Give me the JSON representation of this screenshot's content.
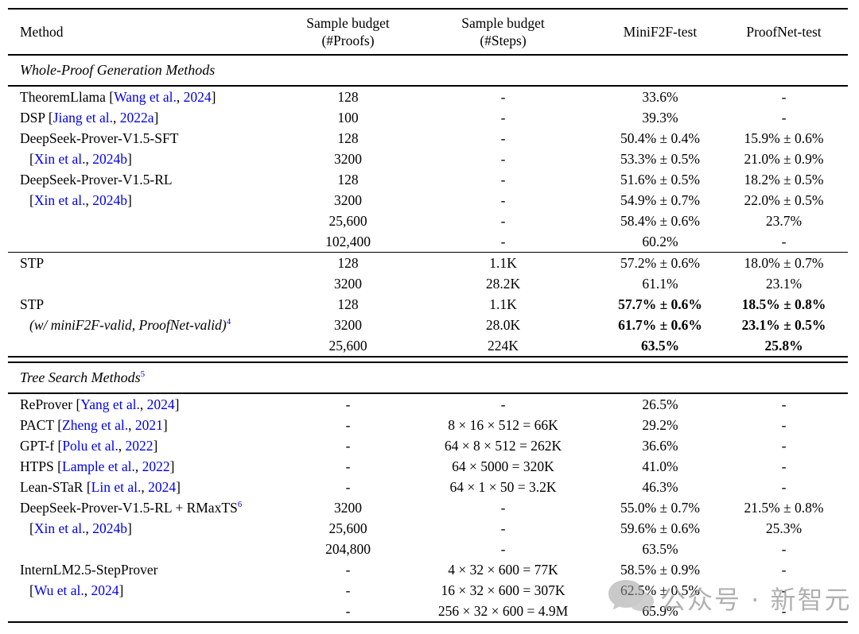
{
  "table": {
    "columns": [
      {
        "label": "Method",
        "sublabel": ""
      },
      {
        "label": "Sample budget",
        "sublabel": "(#Proofs)"
      },
      {
        "label": "Sample budget",
        "sublabel": "(#Steps)"
      },
      {
        "label": "MiniF2F-test",
        "sublabel": ""
      },
      {
        "label": "ProofNet-test",
        "sublabel": ""
      }
    ],
    "sections": [
      {
        "title": "Whole-Proof Generation Methods",
        "sup": "",
        "groups": [
          [
            {
              "method": "TheoremLlama",
              "cite_authors": "Wang et al.",
              "cite_year": "2024",
              "proofs": "128",
              "steps": "-",
              "minif2f": "33.6%",
              "proofnet": "-"
            },
            {
              "method": "DSP",
              "cite_authors": "Jiang et al.",
              "cite_year": "2022a",
              "proofs": "100",
              "steps": "-",
              "minif2f": "39.3%",
              "proofnet": "-"
            },
            {
              "method": "DeepSeek-Prover-V1.5-SFT",
              "proofs": "128",
              "steps": "-",
              "minif2f": "50.4% ± 0.4%",
              "proofnet": "15.9% ± 0.6%"
            },
            {
              "indent": true,
              "cite_authors": "Xin et al.",
              "cite_year": "2024b",
              "proofs": "3200",
              "steps": "-",
              "minif2f": "53.3% ± 0.5%",
              "proofnet": "21.0% ± 0.9%"
            },
            {
              "method": "DeepSeek-Prover-V1.5-RL",
              "proofs": "128",
              "steps": "-",
              "minif2f": "51.6% ± 0.5%",
              "proofnet": "18.2% ± 0.5%"
            },
            {
              "indent": true,
              "cite_authors": "Xin et al.",
              "cite_year": "2024b",
              "proofs": "3200",
              "steps": "-",
              "minif2f": "54.9% ± 0.7%",
              "proofnet": "22.0% ± 0.5%"
            },
            {
              "proofs": "25,600",
              "steps": "-",
              "minif2f": "58.4% ± 0.6%",
              "proofnet": "23.7%"
            },
            {
              "proofs": "102,400",
              "steps": "-",
              "minif2f": "60.2%",
              "proofnet": "-"
            }
          ],
          [
            {
              "method": "STP",
              "proofs": "128",
              "steps": "1.1K",
              "minif2f": "57.2% ± 0.6%",
              "proofnet": "18.0% ± 0.7%"
            },
            {
              "proofs": "3200",
              "steps": "28.2K",
              "minif2f": "61.1%",
              "proofnet": "23.1%"
            },
            {
              "method": "STP",
              "proofs": "128",
              "steps": "1.1K",
              "minif2f": "57.7% ± 0.6%",
              "proofnet": "18.5% ± 0.8%",
              "bold": true
            },
            {
              "method": "(w/ miniF2F-valid, ProofNet-valid)",
              "italic": true,
              "indent": true,
              "sup": "4",
              "proofs": "3200",
              "steps": "28.0K",
              "minif2f": "61.7% ± 0.6%",
              "proofnet": "23.1% ± 0.5%",
              "bold": true
            },
            {
              "proofs": "25,600",
              "steps": "224K",
              "minif2f": "63.5%",
              "proofnet": "25.8%",
              "bold": true
            }
          ]
        ]
      },
      {
        "title": "Tree Search Methods",
        "sup": "5",
        "groups": [
          [
            {
              "method": "ReProver",
              "cite_authors": "Yang et al.",
              "cite_year": "2024",
              "proofs": "-",
              "steps": "-",
              "minif2f": "26.5%",
              "proofnet": "-"
            },
            {
              "method": "PACT",
              "cite_authors": "Zheng et al.",
              "cite_year": "2021",
              "proofs": "-",
              "steps": "8 × 16 × 512 = 66K",
              "minif2f": "29.2%",
              "proofnet": "-"
            },
            {
              "method": "GPT-f",
              "cite_authors": "Polu et al.",
              "cite_year": "2022",
              "proofs": "-",
              "steps": "64 × 8 × 512 = 262K",
              "minif2f": "36.6%",
              "proofnet": "-"
            },
            {
              "method": "HTPS",
              "cite_authors": "Lample et al.",
              "cite_year": "2022",
              "proofs": "-",
              "steps": "64 × 5000 = 320K",
              "minif2f": "41.0%",
              "proofnet": "-"
            },
            {
              "method": "Lean-STaR",
              "cite_authors": "Lin et al.",
              "cite_year": "2024",
              "proofs": "-",
              "steps": "64 × 1 × 50 = 3.2K",
              "minif2f": "46.3%",
              "proofnet": "-"
            },
            {
              "method": "DeepSeek-Prover-V1.5-RL + RMaxTS",
              "sup": "6",
              "proofs": "3200",
              "steps": "-",
              "minif2f": "55.0% ± 0.7%",
              "proofnet": "21.5% ± 0.8%"
            },
            {
              "indent": true,
              "cite_authors": "Xin et al.",
              "cite_year": "2024b",
              "proofs": "25,600",
              "steps": "-",
              "minif2f": "59.6% ± 0.6%",
              "proofnet": "25.3%"
            },
            {
              "proofs": "204,800",
              "steps": "-",
              "minif2f": "63.5%",
              "proofnet": "-"
            },
            {
              "method": "InternLM2.5-StepProver",
              "proofs": "-",
              "steps": "4 × 32 × 600 = 77K",
              "minif2f": "58.5% ± 0.9%",
              "proofnet": "-"
            },
            {
              "indent": true,
              "cite_authors": "Wu et al.",
              "cite_year": "2024",
              "proofs": "-",
              "steps": "16 × 32 × 600 = 307K",
              "minif2f": "62.5% ± 0.5%",
              "proofnet": "-"
            },
            {
              "proofs": "-",
              "steps": "256 × 32 × 600 = 4.9M",
              "minif2f": "65.9%",
              "proofnet": "-"
            }
          ]
        ]
      }
    ]
  },
  "colors": {
    "link": "#0000ee",
    "text": "#000000",
    "rule": "#000000",
    "watermark": "#9e9e9e"
  },
  "watermark": {
    "icon": "chat-bubbles-icon",
    "text": "公众号 · 新智元"
  }
}
